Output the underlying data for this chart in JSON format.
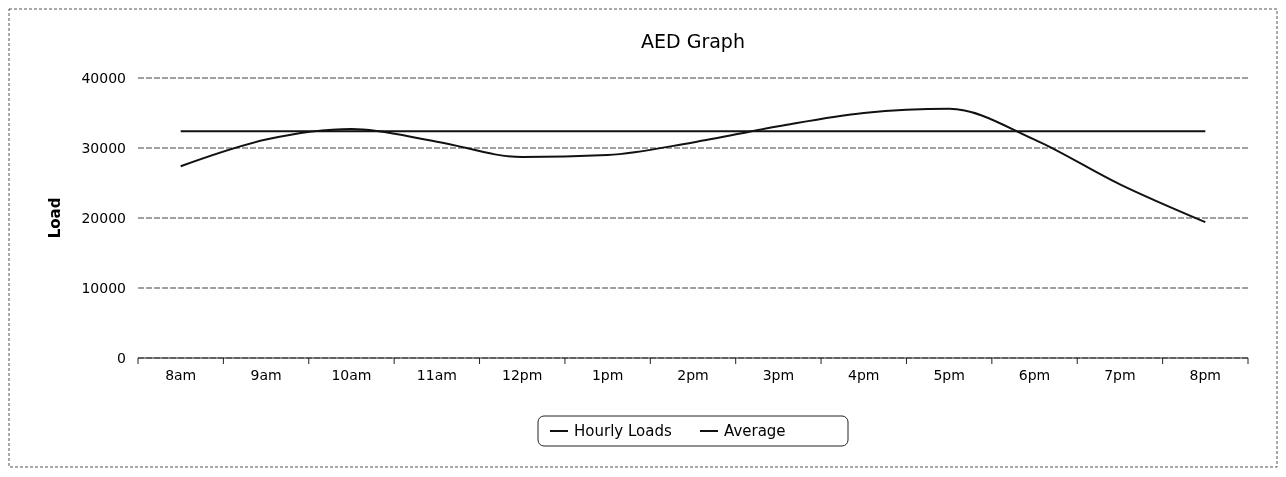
{
  "chart_data": {
    "type": "line",
    "title": "AED Graph",
    "ylabel": "Load",
    "categories": [
      "8am",
      "9am",
      "10am",
      "11am",
      "12pm",
      "1pm",
      "2pm",
      "3pm",
      "4pm",
      "5pm",
      "6pm",
      "7pm",
      "8pm"
    ],
    "series": [
      {
        "name": "Hourly Loads",
        "color": "#111111",
        "values": [
          27400,
          31200,
          32700,
          30900,
          28700,
          29000,
          30800,
          33100,
          35000,
          35600,
          31200,
          24800,
          19400
        ]
      },
      {
        "name": "Average",
        "color": "#111111",
        "values": [
          32400,
          32400,
          32400,
          32400,
          32400,
          32400,
          32400,
          32400,
          32400,
          32400,
          32400,
          32400,
          32400
        ]
      }
    ],
    "ylim": [
      0,
      40000
    ],
    "yticks": [
      0,
      10000,
      20000,
      30000,
      40000
    ],
    "grid": "y",
    "legend": "bottom",
    "marker": "none",
    "line_style": "solid"
  }
}
